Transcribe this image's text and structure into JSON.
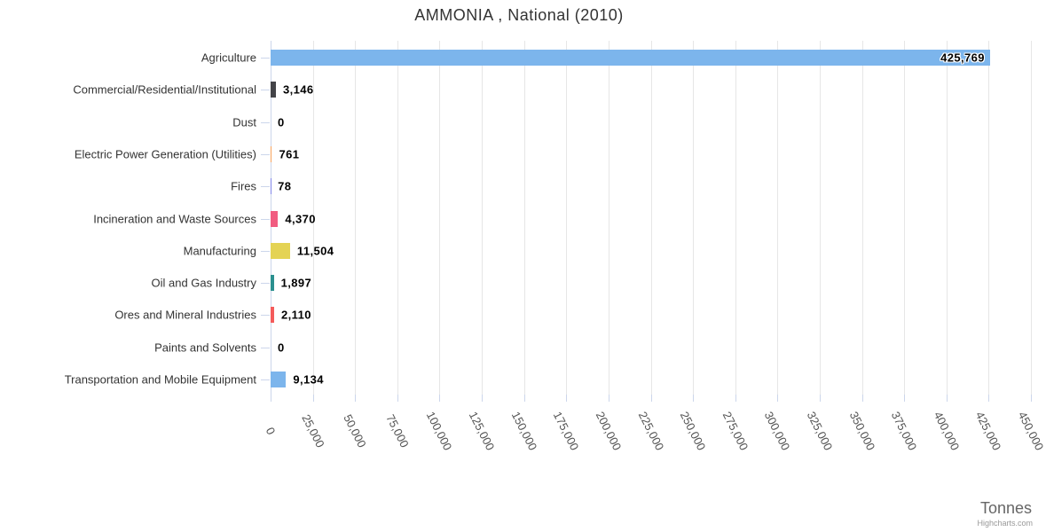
{
  "title": "AMMONIA , National (2010)",
  "axis": {
    "title": "Tonnes",
    "min": 0,
    "max": 450000,
    "tick_interval": 25000,
    "tick_labels": [
      "0",
      "25,000",
      "50,000",
      "75,000",
      "100,000",
      "125,000",
      "150,000",
      "175,000",
      "200,000",
      "225,000",
      "250,000",
      "275,000",
      "300,000",
      "325,000",
      "350,000",
      "375,000",
      "400,000",
      "425,000",
      "450,000"
    ]
  },
  "credits": "Highcharts.com",
  "colors": {
    "grid_line": "#e6e6e6",
    "axis_line": "#ccd6eb",
    "tick": "#ccd6eb",
    "title_text": "#333333",
    "category_text": "#333333",
    "value_text": "#000000",
    "axis_label_text": "#555555",
    "axis_title_text": "#666666",
    "credits_text": "#999999"
  },
  "chart_data": {
    "type": "bar",
    "orientation": "horizontal",
    "title": "AMMONIA , National (2010)",
    "xlabel": "Tonnes",
    "xlim": [
      0,
      450000
    ],
    "grid": true,
    "legend": false,
    "categories": [
      "Agriculture",
      "Commercial/Residential/Institutional",
      "Dust",
      "Electric Power Generation (Utilities)",
      "Fires",
      "Incineration and Waste Sources",
      "Manufacturing",
      "Oil and Gas Industry",
      "Ores and Mineral Industries",
      "Paints and Solvents",
      "Transportation and Mobile Equipment"
    ],
    "values": [
      425769,
      3146,
      0,
      761,
      78,
      4370,
      11504,
      1897,
      2110,
      0,
      9134
    ],
    "value_labels": [
      "425,769",
      "3,146",
      "0",
      "761",
      "78",
      "4,370",
      "11,504",
      "1,897",
      "2,110",
      "0",
      "9,134"
    ],
    "bar_colors": [
      "#7cb5ec",
      "#434348",
      "#90ed7d",
      "#f7a35c",
      "#8085e9",
      "#f15c80",
      "#e4d354",
      "#2b908f",
      "#f45b5b",
      "#91e8e1",
      "#7cb5ec"
    ]
  }
}
